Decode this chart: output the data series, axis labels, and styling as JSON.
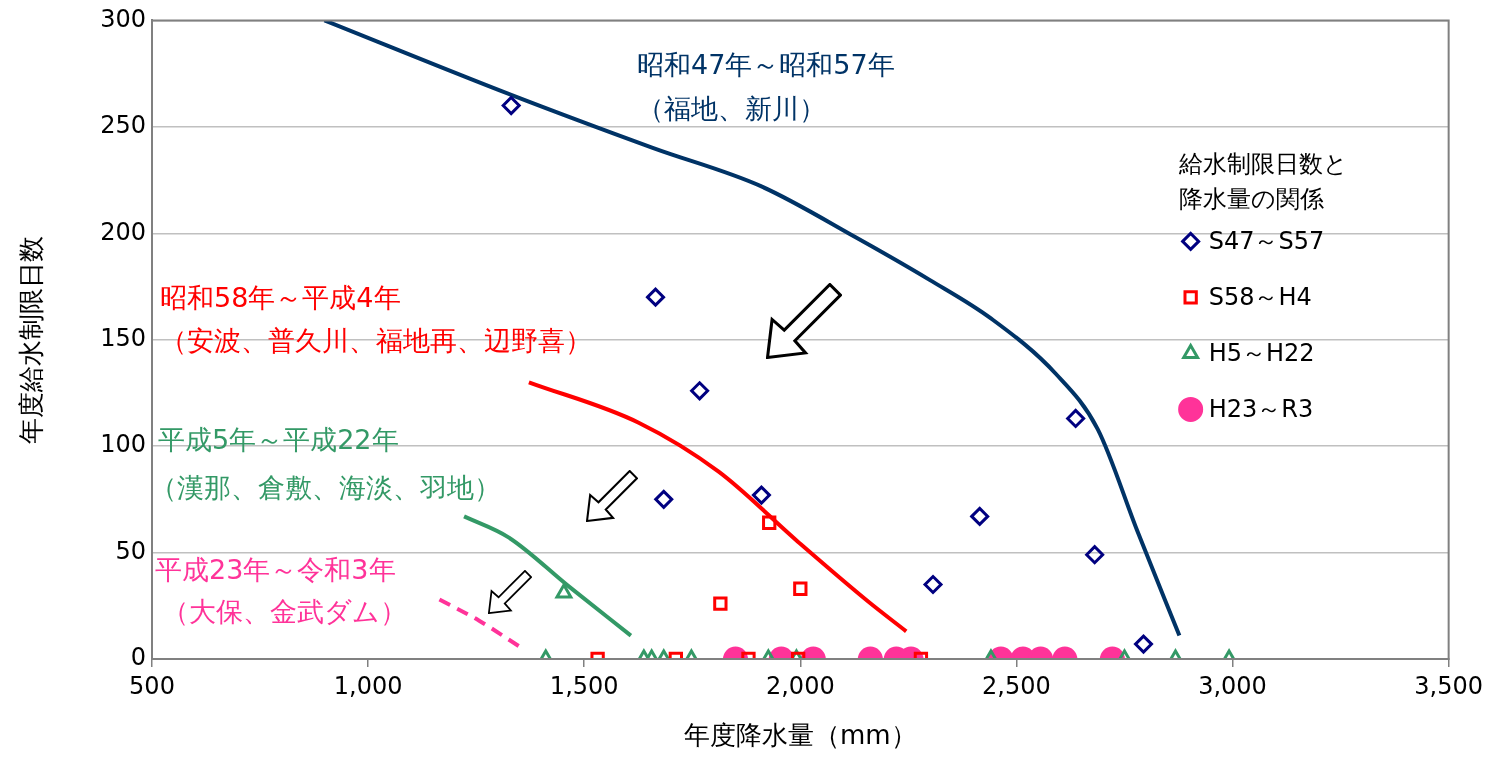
{
  "chart_data": {
    "type": "scatter",
    "xlabel": "年度降水量（mm）",
    "ylabel": "年度給水制限日数",
    "legend_title": "給水制限日数と降水量の関係",
    "legend": "top right",
    "grid": "y",
    "xlim": [
      500,
      3500
    ],
    "xticks": [
      {
        "value": 500,
        "label": "500"
      },
      {
        "value": 1000,
        "label": "1,000"
      },
      {
        "value": 1500,
        "label": "1,500"
      },
      {
        "value": 2000,
        "label": "2,000"
      },
      {
        "value": 2500,
        "label": "2,500"
      },
      {
        "value": 3000,
        "label": "3,000"
      },
      {
        "value": 3500,
        "label": "3,500"
      }
    ],
    "ylim": [
      0,
      300
    ],
    "yticks": [
      0,
      50,
      100,
      150,
      200,
      250,
      300
    ],
    "series": [
      {
        "name": "S47～S57",
        "color": "#000080",
        "marker": "diamond",
        "x": [
          1331,
          1665,
          1767,
          1684,
          1910,
          2415,
          2307,
          2637,
          2681,
          2794
        ],
        "values": [
          260,
          170,
          126,
          75,
          77,
          67,
          35,
          113,
          49,
          7
        ]
      },
      {
        "name": "S58～H4",
        "color": "#ff0000",
        "marker": "square",
        "x": [
          1928,
          2000,
          1815,
          1531,
          1712,
          1880,
          1995,
          2279
        ],
        "values": [
          64,
          33,
          26,
          0,
          0,
          0,
          0,
          0
        ]
      },
      {
        "name": "H5～H22",
        "color": "#339966",
        "marker": "triangle",
        "x": [
          1453,
          1411,
          1638,
          1656,
          1684,
          1748,
          1926,
          1991,
          2441,
          2750,
          2868,
          2992
        ],
        "values": [
          31,
          0,
          0,
          0,
          0,
          0,
          0,
          0,
          0,
          0,
          0,
          0
        ]
      },
      {
        "name": "H23～R3",
        "color": "#ff3399",
        "marker": "circle",
        "x": [
          1850,
          1956,
          2030,
          2162,
          2222,
          2256,
          2464,
          2515,
          2556,
          2612,
          2722
        ],
        "values": [
          0,
          0,
          0,
          0,
          0,
          0,
          0,
          0,
          0,
          0,
          0
        ]
      },
      {
        "type": "line",
        "color": "#003366",
        "marker": "none",
        "line_style": "solid",
        "x": [
          899,
          1331,
          1660,
          1910,
          2129,
          2300,
          2441,
          2591,
          2688,
          2780,
          2877
        ],
        "values": [
          300,
          265,
          240,
          222,
          198,
          178,
          160,
          134,
          108,
          60,
          11
        ]
      },
      {
        "type": "line",
        "color": "#ff0000",
        "marker": "none",
        "line_style": "solid",
        "x": [
          1372,
          1626,
          1811,
          1995,
          2157,
          2245
        ],
        "values": [
          130,
          111,
          88,
          55,
          27,
          13
        ]
      },
      {
        "type": "line",
        "color": "#339966",
        "marker": "none",
        "line_style": "solid",
        "x": [
          1222,
          1326,
          1465,
          1608
        ],
        "values": [
          67,
          57,
          34,
          11
        ]
      },
      {
        "type": "line",
        "color": "#ff3399",
        "marker": "none",
        "line_style": "dashed",
        "x": [
          1165,
          1257,
          1349
        ],
        "values": [
          28,
          18,
          6
        ]
      }
    ],
    "annotations": [
      "昭和47年～昭和57年",
      "（福地、新川）",
      "昭和58年～平成4年",
      "（安波、普久川、福地再、辺野喜）",
      "平成5年～平成22年",
      "（漢那、倉敷、海淡、羽地）",
      "平成23年～令和3年",
      "（大保、金武ダム）"
    ]
  }
}
